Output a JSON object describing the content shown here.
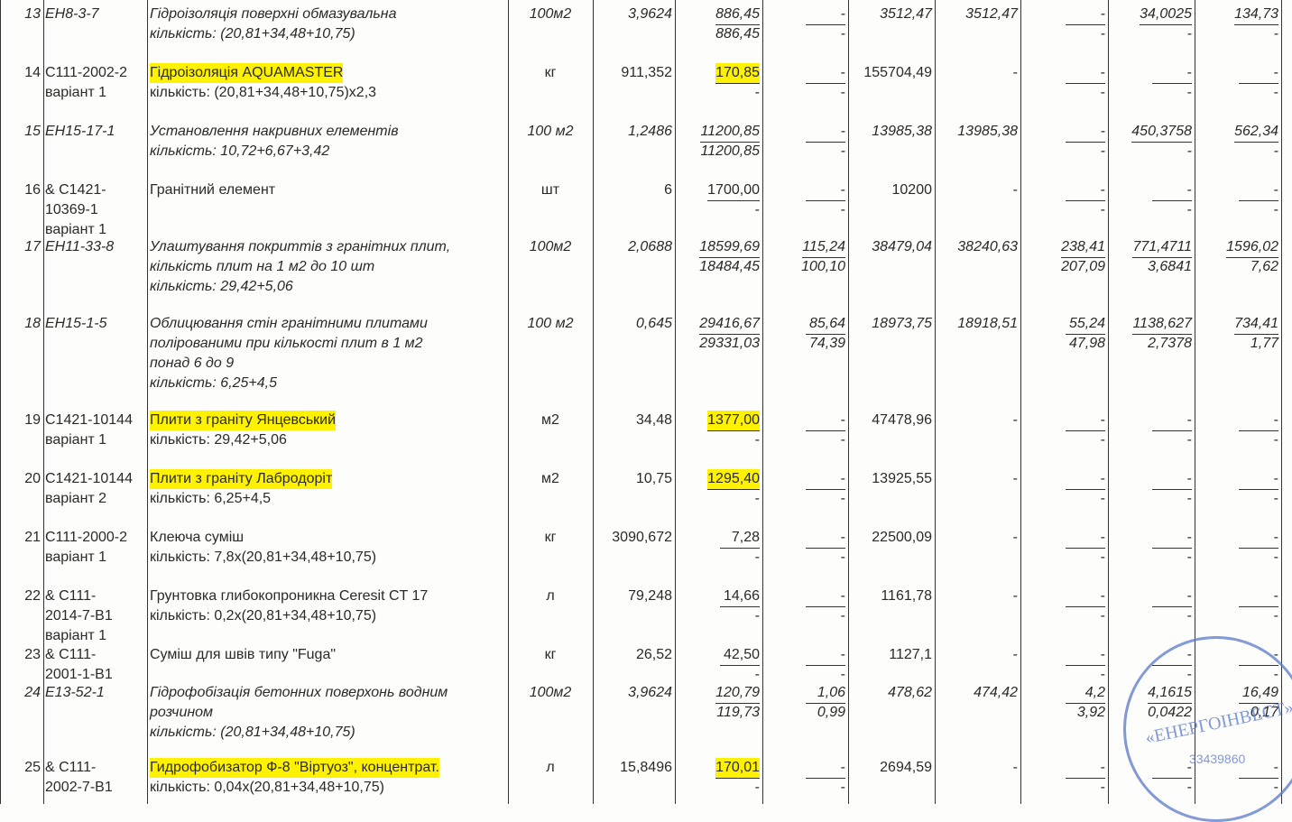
{
  "stamp": {
    "name": "«ЕНЕРГОІНВЕСТ»",
    "code": "33439860"
  },
  "table": {
    "rows": [
      {
        "num": "13",
        "code": [
          "ЕН8-3-7"
        ],
        "desc": [
          "Гідроізоляція поверхні обмазувальна",
          "кількість: (20,81+34,48+10,75)"
        ],
        "italic": true,
        "highlight": false,
        "unit": "100м2",
        "qty": "3,9624",
        "price": [
          "886,45",
          "886,45"
        ],
        "wage": [
          "-",
          "-"
        ],
        "total": "3512,47",
        "wage_total": "3512,47",
        "c9": [
          "-",
          "-"
        ],
        "c10": [
          "34,0025",
          "-"
        ],
        "c11": [
          "134,73",
          "-"
        ]
      },
      {
        "num": "14",
        "code": [
          "С111-2002-2",
          "варіант 1"
        ],
        "desc": [
          "Гідроізоляція AQUAMASTER",
          "кількість: (20,81+34,48+10,75)х2,3"
        ],
        "italic": false,
        "highlight": true,
        "unit": "кг",
        "qty": "911,352",
        "price": [
          "170,85",
          "-"
        ],
        "wage": [
          "-",
          "-"
        ],
        "total": "155704,49",
        "wage_total": "-",
        "c9": [
          "-",
          "-"
        ],
        "c10": [
          "-",
          "-"
        ],
        "c11": [
          "-",
          "-"
        ]
      },
      {
        "num": "15",
        "code": [
          "ЕН15-17-1"
        ],
        "desc": [
          "Установлення накривних елементів",
          "кількість: 10,72+6,67+3,42"
        ],
        "italic": true,
        "highlight": false,
        "unit": "100 м2",
        "qty": "1,2486",
        "price": [
          "11200,85",
          "11200,85"
        ],
        "wage": [
          "-",
          "-"
        ],
        "total": "13985,38",
        "wage_total": "13985,38",
        "c9": [
          "-",
          "-"
        ],
        "c10": [
          "450,3758",
          "-"
        ],
        "c11": [
          "562,34",
          "-"
        ]
      },
      {
        "num": "16",
        "code": [
          "& С1421-",
          "10369-1",
          "варіант 1"
        ],
        "desc": [
          "Гранітний елемент"
        ],
        "italic": false,
        "highlight": false,
        "unit": "шт",
        "qty": "6",
        "price": [
          "1700,00",
          "-"
        ],
        "wage": [
          "-",
          "-"
        ],
        "total": "10200",
        "wage_total": "-",
        "c9": [
          "-",
          "-"
        ],
        "c10": [
          "-",
          "-"
        ],
        "c11": [
          "-",
          "-"
        ]
      },
      {
        "num": "17",
        "code": [
          "ЕН11-33-8"
        ],
        "desc": [
          "Улаштування покриттів з гранітних плит,",
          "кількість плит на 1 м2 до 10 шт",
          "кількість: 29,42+5,06"
        ],
        "italic": true,
        "highlight": false,
        "unit": "100м2",
        "qty": "2,0688",
        "price": [
          "18599,69",
          "18484,45"
        ],
        "wage": [
          "115,24",
          "100,10"
        ],
        "total": "38479,04",
        "wage_total": "38240,63",
        "c9": [
          "238,41",
          "207,09"
        ],
        "c10": [
          "771,4711",
          "3,6841"
        ],
        "c11": [
          "1596,02",
          "7,62"
        ]
      },
      {
        "num": "18",
        "code": [
          "ЕН15-1-5"
        ],
        "desc": [
          "Облицювання стін гранітними плитами",
          "полірованими при кількості плит в 1 м2",
          "понад 6 до 9",
          "кількість: 6,25+4,5"
        ],
        "italic": true,
        "highlight": false,
        "unit": "100 м2",
        "qty": "0,645",
        "price": [
          "29416,67",
          "29331,03"
        ],
        "wage": [
          "85,64",
          "74,39"
        ],
        "total": "18973,75",
        "wage_total": "18918,51",
        "c9": [
          "55,24",
          "47,98"
        ],
        "c10": [
          "1138,627",
          "2,7378"
        ],
        "c11": [
          "734,41",
          "1,77"
        ]
      },
      {
        "num": "19",
        "code": [
          "С1421-10144",
          "варіант 1"
        ],
        "desc": [
          "Плити з граніту Янцевський",
          "кількість: 29,42+5,06"
        ],
        "italic": false,
        "highlight": true,
        "unit": "м2",
        "qty": "34,48",
        "price": [
          "1377,00",
          "-"
        ],
        "wage": [
          "-",
          "-"
        ],
        "total": "47478,96",
        "wage_total": "-",
        "c9": [
          "-",
          "-"
        ],
        "c10": [
          "-",
          "-"
        ],
        "c11": [
          "-",
          "-"
        ]
      },
      {
        "num": "20",
        "code": [
          "С1421-10144",
          "варіант 2"
        ],
        "desc": [
          "Плити з граніту Лабродоріт",
          "кількість: 6,25+4,5"
        ],
        "italic": false,
        "highlight": true,
        "unit": "м2",
        "qty": "10,75",
        "price": [
          "1295,40",
          "-"
        ],
        "wage": [
          "-",
          "-"
        ],
        "total": "13925,55",
        "wage_total": "-",
        "c9": [
          "-",
          "-"
        ],
        "c10": [
          "-",
          "-"
        ],
        "c11": [
          "-",
          "-"
        ]
      },
      {
        "num": "21",
        "code": [
          "С111-2000-2",
          "варіант 1"
        ],
        "desc": [
          "Клеюча суміш",
          "кількість: 7,8х(20,81+34,48+10,75)"
        ],
        "italic": false,
        "highlight": false,
        "unit": "кг",
        "qty": "3090,672",
        "price": [
          "7,28",
          "-"
        ],
        "wage": [
          "-",
          "-"
        ],
        "total": "22500,09",
        "wage_total": "-",
        "c9": [
          "-",
          "-"
        ],
        "c10": [
          "-",
          "-"
        ],
        "c11": [
          "-",
          "-"
        ]
      },
      {
        "num": "22",
        "code": [
          "& С111-",
          "2014-7-В1",
          "варіант 1"
        ],
        "desc": [
          "Грунтовка глибокопроникна Ceresit CT 17",
          "кількість: 0,2х(20,81+34,48+10,75)"
        ],
        "italic": false,
        "highlight": false,
        "unit": "л",
        "qty": "79,248",
        "price": [
          "14,66",
          "-"
        ],
        "wage": [
          "-",
          "-"
        ],
        "total": "1161,78",
        "wage_total": "-",
        "c9": [
          "-",
          "-"
        ],
        "c10": [
          "-",
          "-"
        ],
        "c11": [
          "-",
          "-"
        ]
      },
      {
        "num": "23",
        "code": [
          "& С111-",
          "2001-1-В1"
        ],
        "desc": [
          "Суміш для швів типу \"Fuga\""
        ],
        "italic": false,
        "highlight": false,
        "unit": "кг",
        "qty": "26,52",
        "price": [
          "42,50",
          "-"
        ],
        "wage": [
          "-",
          "-"
        ],
        "total": "1127,1",
        "wage_total": "-",
        "c9": [
          "-",
          "-"
        ],
        "c10": [
          "-",
          "-"
        ],
        "c11": [
          "-",
          "-"
        ]
      },
      {
        "num": "24",
        "code": [
          "Е13-52-1"
        ],
        "desc": [
          "Гідрофобізація бетонних поверхонь водним",
          "розчином",
          "кількість: (20,81+34,48+10,75)"
        ],
        "italic": true,
        "highlight": false,
        "unit": "100м2",
        "qty": "3,9624",
        "price": [
          "120,79",
          "119,73"
        ],
        "wage": [
          "1,06",
          "0,99"
        ],
        "total": "478,62",
        "wage_total": "474,42",
        "c9": [
          "4,2",
          "3,92"
        ],
        "c10": [
          "4,1615",
          "0,0422"
        ],
        "c11": [
          "16,49",
          "0,17"
        ]
      },
      {
        "num": "25",
        "code": [
          "& С111-",
          "2002-7-В1"
        ],
        "desc": [
          "Гидрофобизатор Ф-8 \"Віртуоз\", концентрат.",
          "кількість: 0,04х(20,81+34,48+10,75)"
        ],
        "italic": false,
        "highlight": true,
        "unit": "л",
        "qty": "15,8496",
        "price": [
          "170,01",
          "-"
        ],
        "wage": [
          "-",
          "-"
        ],
        "total": "2694,59",
        "wage_total": "-",
        "c9": [
          "-",
          "-"
        ],
        "c10": [
          "-",
          "-"
        ],
        "c11": [
          "-",
          "-"
        ]
      }
    ]
  }
}
